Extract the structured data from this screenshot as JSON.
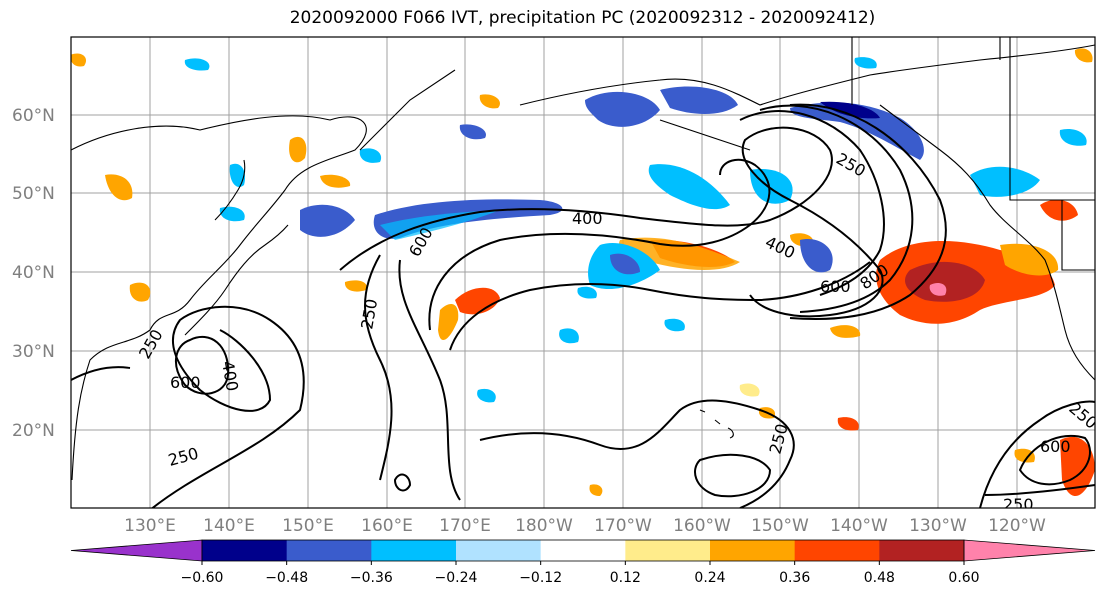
{
  "title": "2020092000 F066 IVT, precipitation PC (2020092312 - 2020092412)",
  "lat_labels": [
    "60°N",
    "50°N",
    "40°N",
    "30°N",
    "20°N"
  ],
  "lon_labels": [
    "130°E",
    "140°E",
    "150°E",
    "160°E",
    "170°E",
    "180°W",
    "170°W",
    "160°W",
    "150°W",
    "140°W",
    "130°W",
    "120°W"
  ],
  "contour_labels": [
    "250",
    "400",
    "600",
    "800"
  ],
  "colorbar": {
    "ticks": [
      "−0.60",
      "−0.48",
      "−0.36",
      "−0.24",
      "−0.12",
      "0.12",
      "0.24",
      "0.36",
      "0.48",
      "0.60"
    ],
    "colors": [
      "#9932cc",
      "#00008b",
      "#3a5ccc",
      "#00bfff",
      "#b0e2ff",
      "#ffffff",
      "#ffec8b",
      "#ffa500",
      "#ff4500",
      "#b22222",
      "#ff82ab"
    ]
  }
}
